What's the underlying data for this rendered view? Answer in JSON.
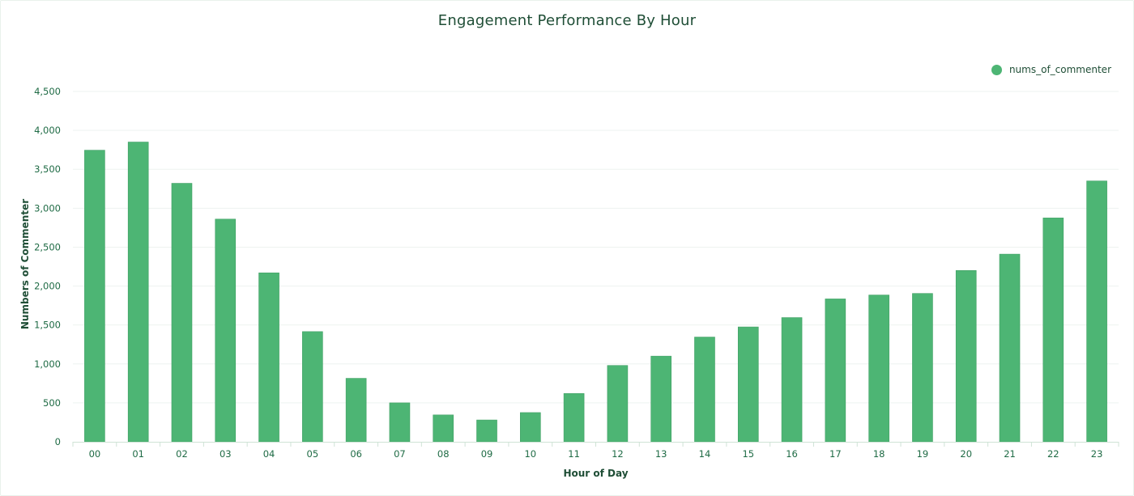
{
  "chart_data": {
    "type": "bar",
    "title": "Engagement Performance By Hour",
    "xlabel": "Hour of Day",
    "ylabel": "Numbers of Commenter",
    "categories": [
      "00",
      "01",
      "02",
      "03",
      "04",
      "05",
      "06",
      "07",
      "08",
      "09",
      "10",
      "11",
      "12",
      "13",
      "14",
      "15",
      "16",
      "17",
      "18",
      "19",
      "20",
      "21",
      "22",
      "23"
    ],
    "series": [
      {
        "name": "nums_of_commenter",
        "color": "#4db574",
        "values": [
          3745,
          3850,
          3320,
          2860,
          2170,
          1415,
          815,
          500,
          345,
          280,
          375,
          620,
          980,
          1100,
          1345,
          1475,
          1595,
          1835,
          1885,
          1905,
          2200,
          2410,
          2875,
          3350
        ]
      }
    ],
    "ylim": [
      0,
      4500
    ],
    "yticks": [
      0,
      500,
      1000,
      1500,
      2000,
      2500,
      3000,
      3500,
      4000,
      4500
    ],
    "ytick_labels": [
      "0",
      "500",
      "1,000",
      "1,500",
      "2,000",
      "2,500",
      "3,000",
      "3,500",
      "4,000",
      "4,500"
    ],
    "grid": true,
    "legend_position": "top-right"
  }
}
